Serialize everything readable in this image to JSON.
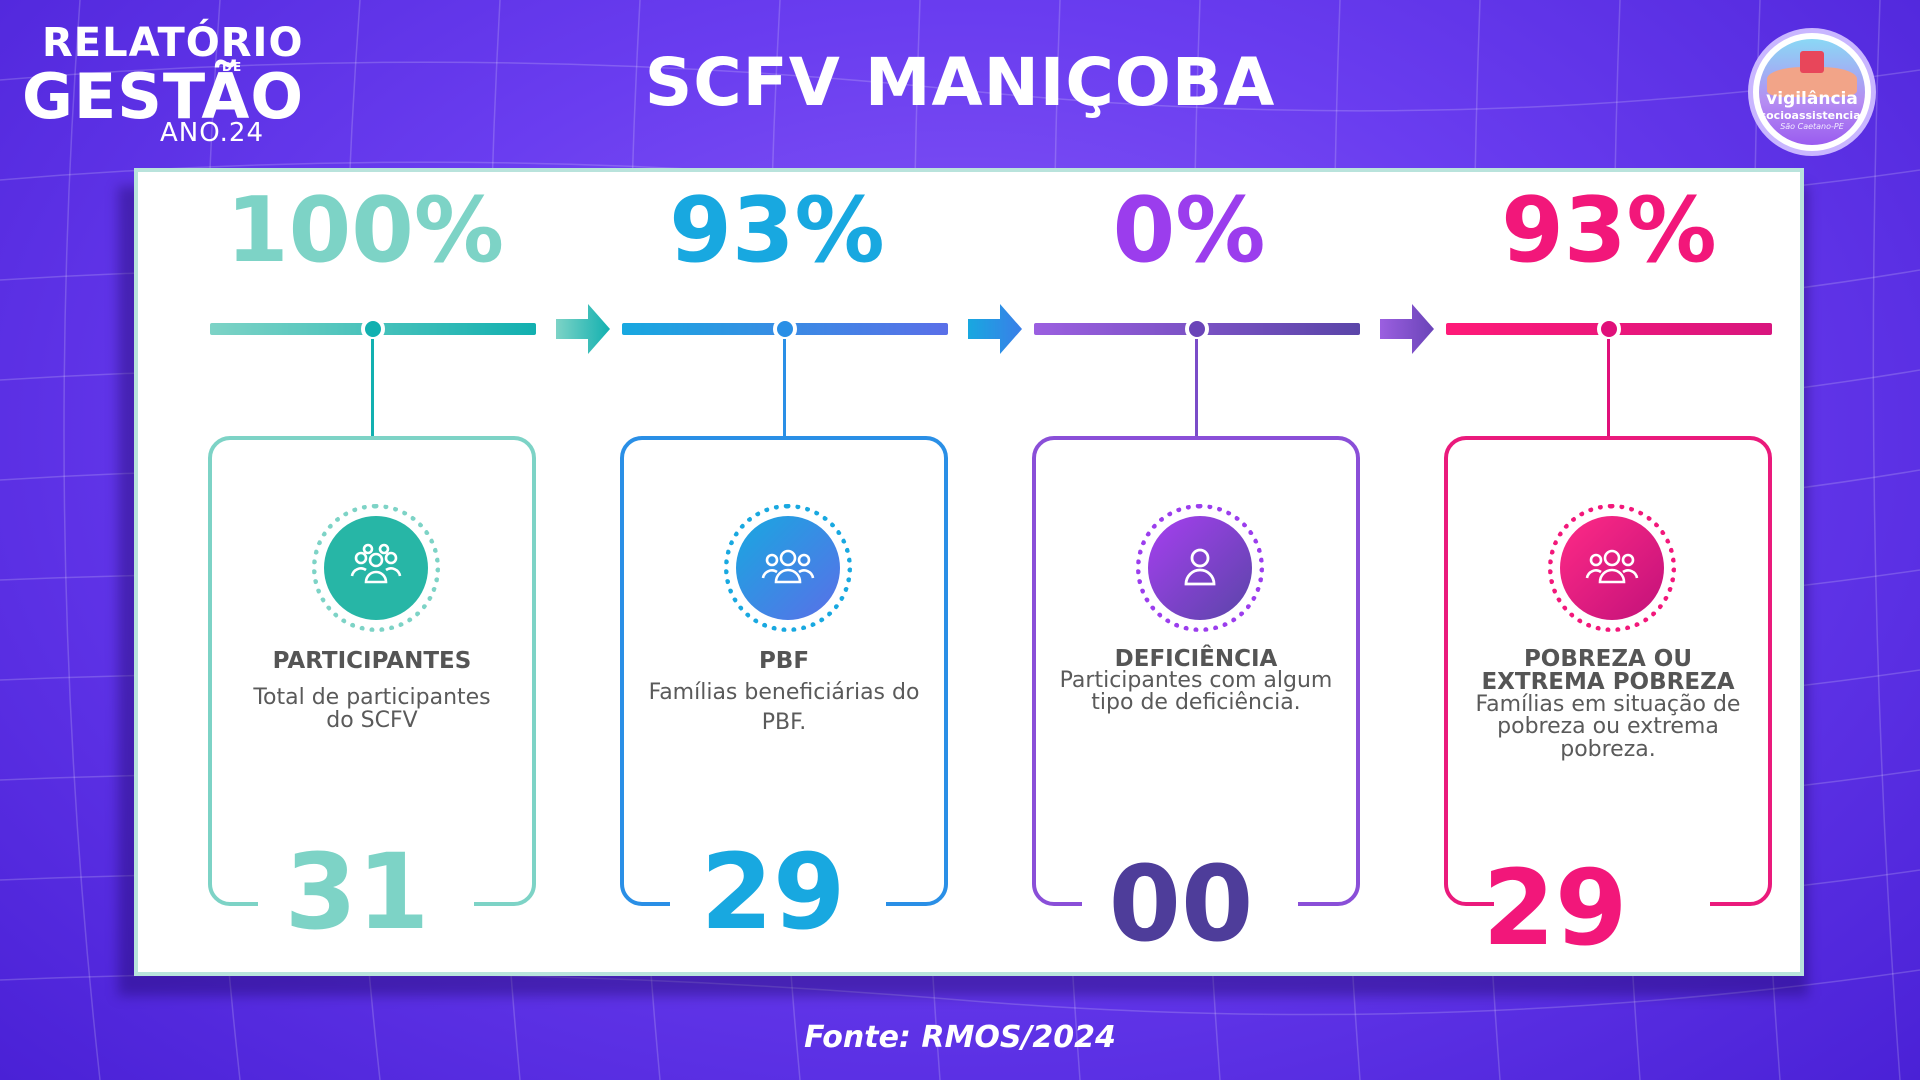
{
  "header": {
    "brand_line1": "RELATÓRIO",
    "brand_line2": "DE",
    "brand_line3": "GESTÃO",
    "brand_line4": "ANO.24",
    "title": "SCFV MANIÇOBA",
    "logo_text": "vigilância",
    "logo_sub": "socioassistencial",
    "logo_city": "São Caetano-PE"
  },
  "indicators": [
    {
      "percent": "100%",
      "title": "PARTICIPANTES",
      "description": "Total de participantes do SCFV",
      "count": "31",
      "color": "#7dd3c6",
      "icon": "group-icon"
    },
    {
      "percent": "93%",
      "title": "PBF",
      "description": "Famílias beneficiárias do PBF.",
      "count": "29",
      "color": "#18a8e0",
      "icon": "group-icon"
    },
    {
      "percent": "0%",
      "title": "DEFICIÊNCIA",
      "description": "Participantes com algum tipo de deficiência.",
      "count": "00",
      "color": "#9b3ded",
      "icon": "person-icon"
    },
    {
      "percent": "93%",
      "title": "POBREZA OU EXTREMA POBREZA",
      "description": "Famílias em situação de pobreza ou extrema pobreza.",
      "count": "29",
      "color": "#f2177a",
      "icon": "group-icon"
    }
  ],
  "footer": {
    "source": "Fonte: RMOS/2024"
  }
}
